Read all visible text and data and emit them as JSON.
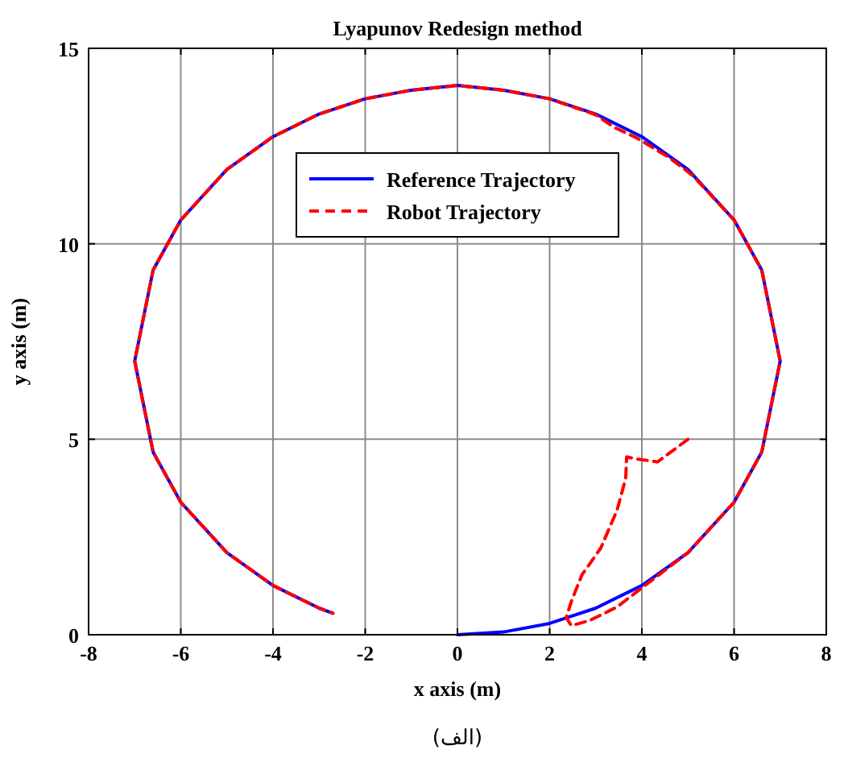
{
  "chart_data": {
    "type": "line",
    "title": "Lyapunov Redesign method",
    "xlabel": "x axis (m)",
    "ylabel": "y axis (m)",
    "annotations": [
      "(الف)"
    ],
    "xlim": [
      -8,
      8
    ],
    "ylim": [
      0,
      15
    ],
    "xticks": [
      -8,
      -6,
      -4,
      -2,
      0,
      2,
      4,
      6,
      8
    ],
    "yticks": [
      0,
      5,
      10,
      15
    ],
    "grid": true,
    "legend": "top",
    "series": [
      {
        "name": "Reference Trajectory",
        "color": "#0000ff",
        "line_style": "solid",
        "x": [
          0,
          1,
          2,
          3,
          4,
          5,
          6,
          6.6,
          7,
          6.6,
          6,
          5,
          4,
          3,
          2,
          1,
          0,
          -1,
          -2,
          -3,
          -4,
          -5,
          -6,
          -6.6,
          -7,
          -6.6,
          -6,
          -5,
          -4,
          -3,
          -2.7
        ],
        "values": [
          0,
          0.07,
          0.29,
          0.68,
          1.26,
          2.1,
          3.39,
          4.67,
          7,
          9.33,
          10.61,
          11.9,
          12.74,
          13.32,
          13.71,
          13.93,
          14.05,
          13.93,
          13.71,
          13.32,
          12.74,
          11.9,
          10.61,
          9.33,
          7,
          4.67,
          3.39,
          2.1,
          1.26,
          0.68,
          0.55
        ]
      },
      {
        "name": "Robot Trajectory",
        "color": "#ff0000",
        "line_style": "dashed",
        "x": [
          5,
          4.34,
          3.87,
          3.67,
          3.65,
          3.46,
          3.11,
          2.7,
          2.47,
          2.36,
          2.47,
          2.88,
          3.46,
          3.99,
          5,
          6,
          6.6,
          7,
          6.6,
          6,
          5.1,
          4.6,
          3.9,
          3.4,
          3,
          2,
          1,
          0,
          -1,
          -2,
          -3,
          -4,
          -5,
          -6,
          -6.6,
          -7,
          -6.6,
          -6,
          -5,
          -4,
          -3,
          -2.7
        ],
        "values": [
          5,
          4.42,
          4.5,
          4.55,
          4.0,
          3.18,
          2.22,
          1.53,
          0.85,
          0.44,
          0.23,
          0.37,
          0.71,
          1.19,
          2.1,
          3.39,
          4.67,
          7,
          9.33,
          10.61,
          11.75,
          12.2,
          12.7,
          12.98,
          13.3,
          13.71,
          13.93,
          14.05,
          13.93,
          13.71,
          13.32,
          12.74,
          11.9,
          10.61,
          9.33,
          7,
          4.67,
          3.39,
          2.1,
          1.26,
          0.68,
          0.55
        ]
      }
    ]
  }
}
